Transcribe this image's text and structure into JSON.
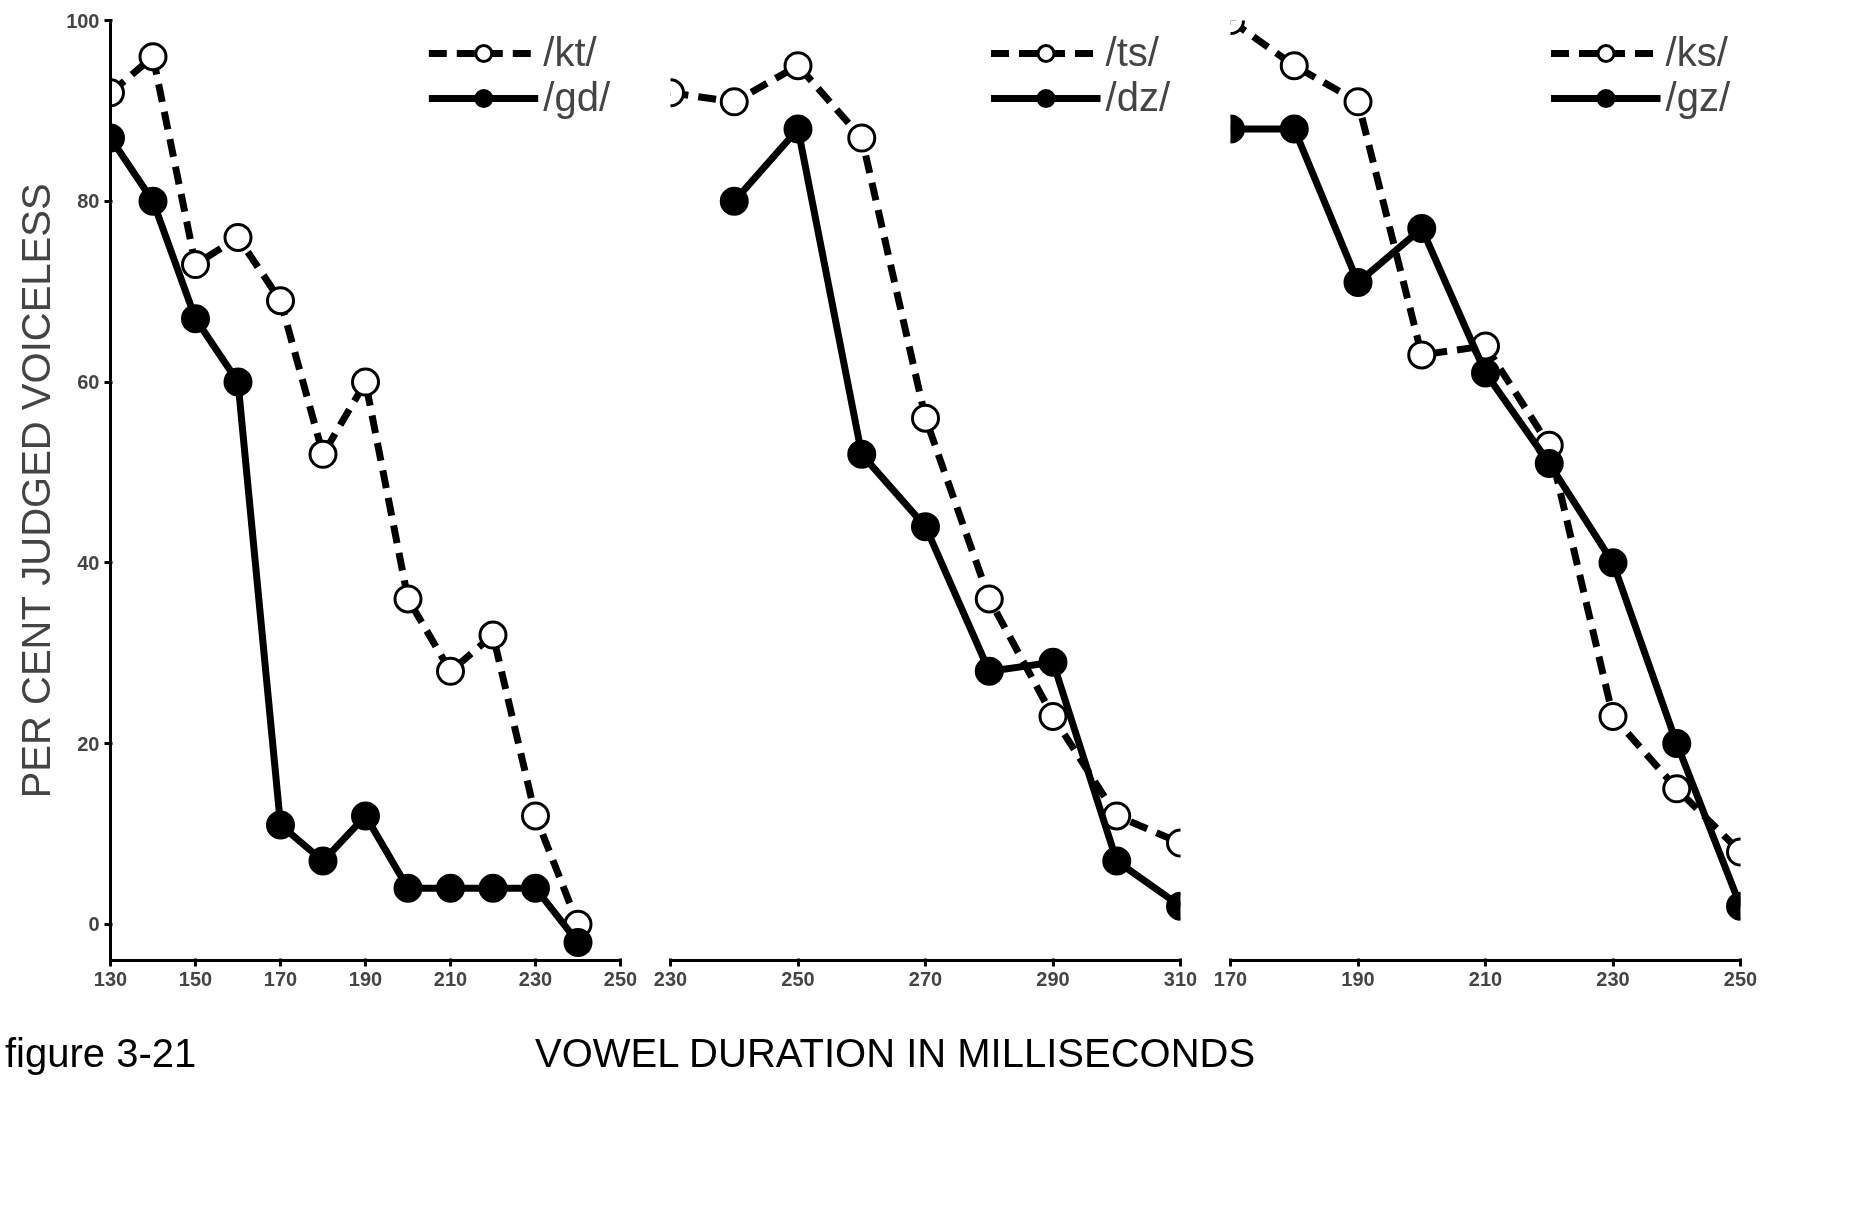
{
  "chart_data": [
    {
      "type": "line",
      "ylabel": "PER CENT JUDGED VOICELESS",
      "annotations": [
        "figure 3-21"
      ],
      "x": [
        130,
        140,
        150,
        160,
        170,
        180,
        190,
        200,
        210,
        220,
        230,
        240
      ],
      "xlim": [
        130,
        250
      ],
      "xticks": [
        130,
        150,
        170,
        190,
        210,
        230,
        250
      ],
      "ylim": [
        -4,
        100
      ],
      "yticks": [
        0,
        20,
        40,
        60,
        80,
        100
      ],
      "grid": false,
      "legend": "top right",
      "marker": "circle",
      "series": [
        {
          "name": "/kt/",
          "color": "#000000",
          "line_style": "dashed",
          "values": [
            92,
            96,
            73,
            76,
            69,
            52,
            60,
            36,
            28,
            32,
            12,
            0
          ]
        },
        {
          "name": "/gd/",
          "color": "#000000",
          "line_style": "solid",
          "values": [
            87,
            80,
            67,
            60,
            11,
            7,
            12,
            4,
            4,
            4,
            4,
            -2
          ]
        }
      ]
    },
    {
      "type": "line",
      "xlabel": "VOWEL DURATION IN MILLISECONDS",
      "x": [
        230,
        240,
        250,
        260,
        270,
        280,
        290,
        300,
        310
      ],
      "xlim": [
        230,
        310
      ],
      "xticks": [
        230,
        250,
        270,
        290,
        310
      ],
      "ylim": [
        -4,
        100
      ],
      "tick_labels": "x",
      "grid": false,
      "legend": "top right",
      "marker": "circle",
      "series": [
        {
          "name": "/ts/",
          "color": "#000000",
          "line_style": "dashed",
          "values": [
            92,
            91,
            95,
            87,
            56,
            36,
            23,
            12,
            9
          ]
        },
        {
          "name": "/dz/",
          "color": "#000000",
          "line_style": "solid",
          "values": [
            null,
            80,
            88,
            52,
            44,
            28,
            29,
            7,
            2
          ]
        }
      ]
    },
    {
      "type": "line",
      "x": [
        170,
        180,
        190,
        200,
        210,
        220,
        230,
        240,
        250
      ],
      "xlim": [
        170,
        250
      ],
      "xticks": [
        170,
        190,
        210,
        230,
        250
      ],
      "ylim": [
        -4,
        100
      ],
      "tick_labels": "x",
      "grid": false,
      "legend": "top right",
      "marker": "circle",
      "series": [
        {
          "name": "/ks/",
          "color": "#000000",
          "line_style": "dashed",
          "values": [
            100,
            95,
            91,
            63,
            64,
            53,
            23,
            15,
            8
          ]
        },
        {
          "name": "/gz/",
          "color": "#000000",
          "line_style": "solid",
          "values": [
            88,
            88,
            71,
            77,
            61,
            51,
            40,
            20,
            2
          ]
        }
      ]
    }
  ]
}
